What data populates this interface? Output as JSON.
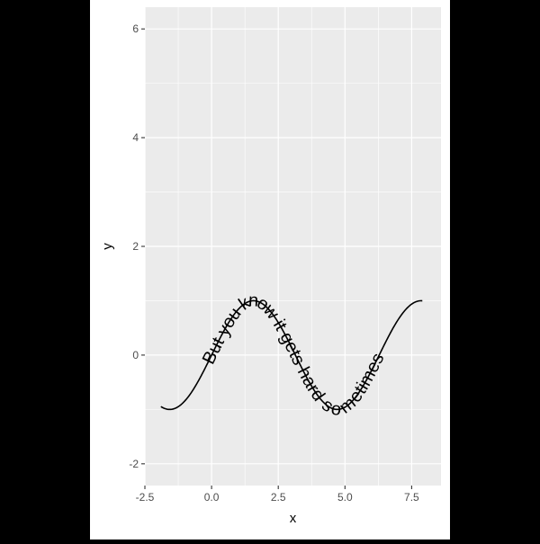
{
  "chart_data": {
    "type": "line",
    "title": "",
    "xlabel": "x",
    "ylabel": "y",
    "xlim": [
      -2.5,
      8.6
    ],
    "ylim": [
      -2.4,
      6.4
    ],
    "x_ticks": [
      -2.5,
      0.0,
      2.5,
      5.0,
      7.5
    ],
    "x_tick_labels": [
      "-2.5",
      "0.0",
      "2.5",
      "5.0",
      "7.5"
    ],
    "y_ticks": [
      -2,
      0,
      2,
      4,
      6
    ],
    "y_tick_labels": [
      "-2",
      "0",
      "2",
      "4",
      "6"
    ],
    "grid": true,
    "panel_background": "#ebebeb",
    "grid_color": "#ffffff",
    "line_color": "#000000",
    "series": [
      {
        "function": "sin(x)",
        "x_range": [
          -1.9,
          7.9
        ],
        "label": "But you know it gets hard sometimes"
      }
    ]
  }
}
